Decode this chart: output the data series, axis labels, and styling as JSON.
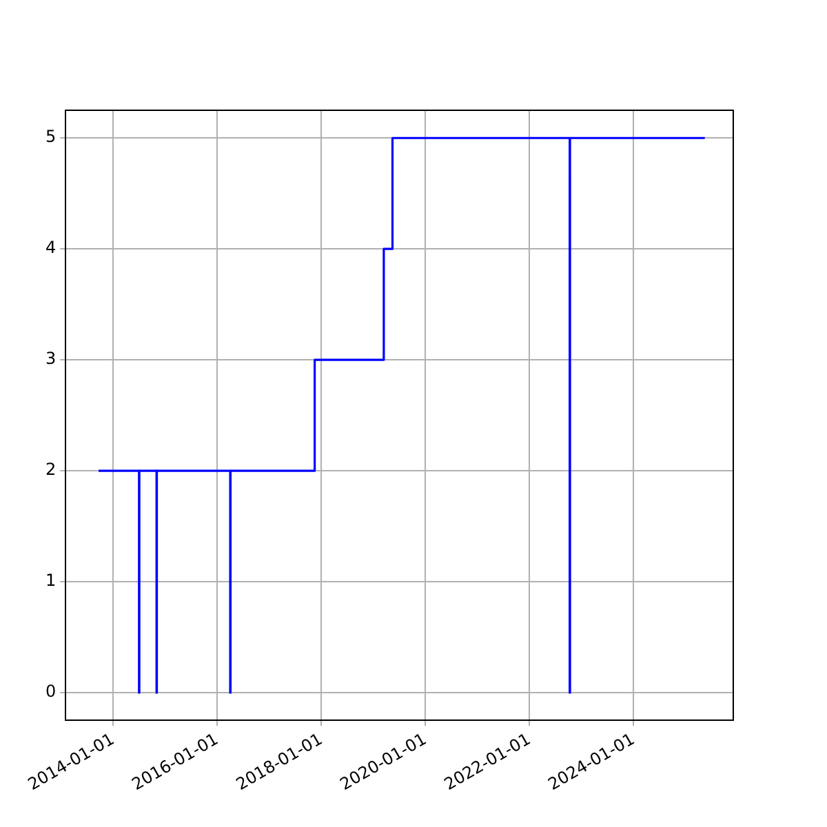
{
  "chart_data": {
    "type": "step",
    "x": [
      "2013-09-20",
      "2014-07-01",
      "2014-07-03",
      "2014-11-01",
      "2014-11-03",
      "2016-04-01",
      "2016-04-03",
      "2017-11-15",
      "2019-03-15",
      "2019-05-15",
      "2022-10-10",
      "2022-10-12",
      "2025-05-15"
    ],
    "series": [
      {
        "color": "#0000ff",
        "values": [
          2,
          0,
          2,
          0,
          2,
          0,
          2,
          3,
          4,
          5,
          0,
          5,
          5
        ]
      }
    ],
    "xlim": [
      "2013-02-01",
      "2025-12-01"
    ],
    "xticks": [
      "2014-01-01",
      "2016-01-01",
      "2018-01-01",
      "2020-01-01",
      "2022-01-01",
      "2024-01-01"
    ],
    "ylim": [
      -0.25,
      5.25
    ],
    "yticks": [
      0,
      1,
      2,
      3,
      4,
      5
    ],
    "grid": true,
    "legend": false,
    "marker": "none",
    "line_style": "solid"
  }
}
